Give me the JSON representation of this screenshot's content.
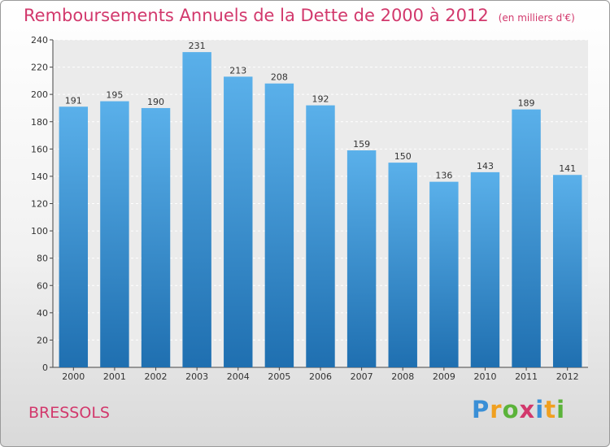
{
  "title": "Remboursements Annuels de la Dette de 2000 à 2012",
  "unit": "(en milliers d'€)",
  "commune": "BRESSOLS",
  "logo": {
    "letters": [
      "P",
      "r",
      "o",
      "x",
      "i",
      "t",
      "i"
    ],
    "colors": [
      "#3a8fd6",
      "#f0a020",
      "#5bb33a",
      "#d2386c",
      "#3a8fd6",
      "#f0a020",
      "#5bb33a"
    ]
  },
  "colors": {
    "bar_top": "#5ab0ea",
    "bar_bottom": "#1f6fb0",
    "title": "#d2386c"
  },
  "chart_data": {
    "type": "bar",
    "categories": [
      "2000",
      "2001",
      "2002",
      "2003",
      "2004",
      "2005",
      "2006",
      "2007",
      "2008",
      "2009",
      "2010",
      "2011",
      "2012"
    ],
    "values": [
      191,
      195,
      190,
      231,
      213,
      208,
      192,
      159,
      150,
      136,
      143,
      189,
      141
    ],
    "ylim": [
      0,
      240
    ],
    "yticks": [
      0,
      20,
      40,
      60,
      80,
      100,
      120,
      140,
      160,
      180,
      200,
      220,
      240
    ],
    "grid": true,
    "xlabel": "",
    "ylabel": ""
  }
}
